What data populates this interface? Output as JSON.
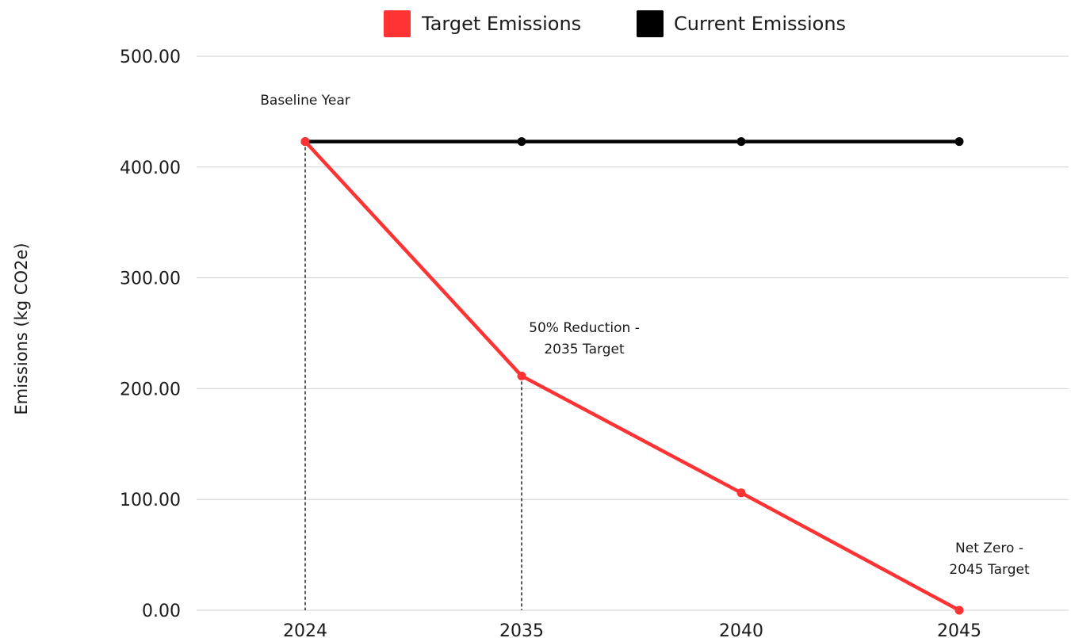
{
  "chart_data": {
    "type": "line",
    "title": "",
    "xlabel": "",
    "ylabel": "Emissions (kg CO2e)",
    "categories": [
      "2024",
      "2035",
      "2040",
      "2045"
    ],
    "ylim": [
      0,
      500
    ],
    "yticks": [
      "0.00",
      "100.00",
      "200.00",
      "300.00",
      "400.00",
      "500.00"
    ],
    "ytick_values": [
      0,
      100,
      200,
      300,
      400,
      500
    ],
    "grid": "horizontal",
    "legend_position": "top",
    "series": [
      {
        "name": "Target Emissions",
        "color": "#ff3333",
        "values": [
          423,
          211.5,
          106,
          0
        ]
      },
      {
        "name": "Current Emissions",
        "color": "#000000",
        "values": [
          423,
          423,
          423,
          423
        ]
      }
    ],
    "annotations": [
      {
        "lines": [
          "Baseline Year"
        ],
        "category": "2024",
        "value": 423,
        "drop_line": true
      },
      {
        "lines": [
          "50% Reduction -",
          "2035 Target"
        ],
        "category": "2035",
        "value": 211.5,
        "drop_line": true
      },
      {
        "lines": [
          "Net Zero -",
          "2045 Target"
        ],
        "category": "2045",
        "value": 0,
        "drop_line": false
      }
    ]
  }
}
